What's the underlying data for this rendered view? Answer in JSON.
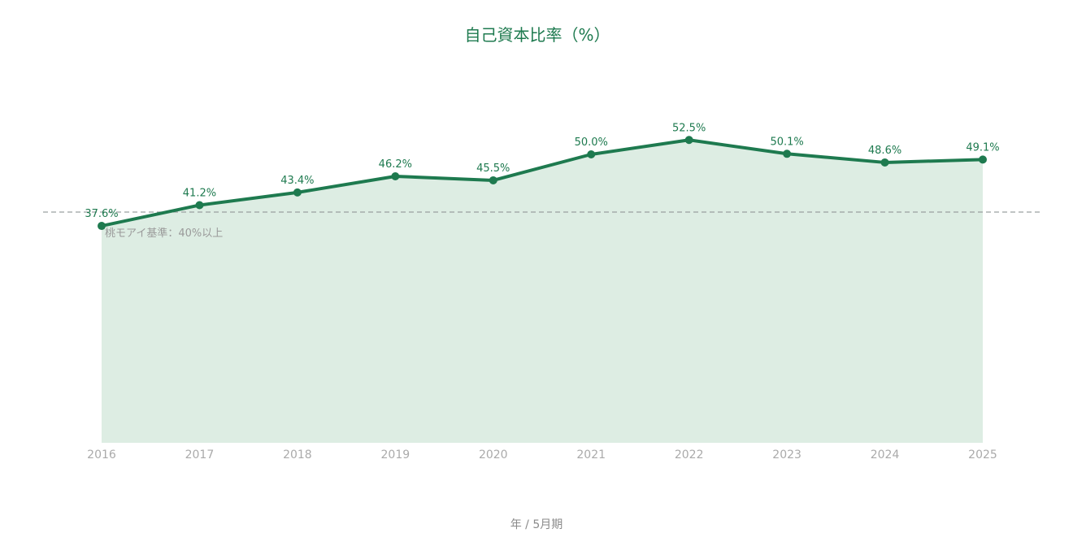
{
  "chart_data": {
    "type": "area",
    "title": "自己資本比率（%）",
    "xlabel": "年 / 5月期",
    "ylabel": "",
    "categories": [
      "2016",
      "2017",
      "2018",
      "2019",
      "2020",
      "2021",
      "2022",
      "2023",
      "2024",
      "2025"
    ],
    "values": [
      37.6,
      41.2,
      43.4,
      46.2,
      45.5,
      50.0,
      52.5,
      50.1,
      48.6,
      49.1
    ],
    "data_labels": [
      "37.6%",
      "41.2%",
      "43.4%",
      "46.2%",
      "45.5%",
      "50.0%",
      "52.5%",
      "50.1%",
      "48.6%",
      "49.1%"
    ],
    "ylim": [
      0,
      70
    ],
    "grid": false,
    "reference_line": {
      "value": 40,
      "label": "桃モアイ基準：40%以上",
      "color": "#9aa0a0",
      "style": "dashed"
    },
    "colors": {
      "line": "#1e7a4f",
      "area": "#ddede3",
      "title": "#1e7a4f"
    }
  }
}
